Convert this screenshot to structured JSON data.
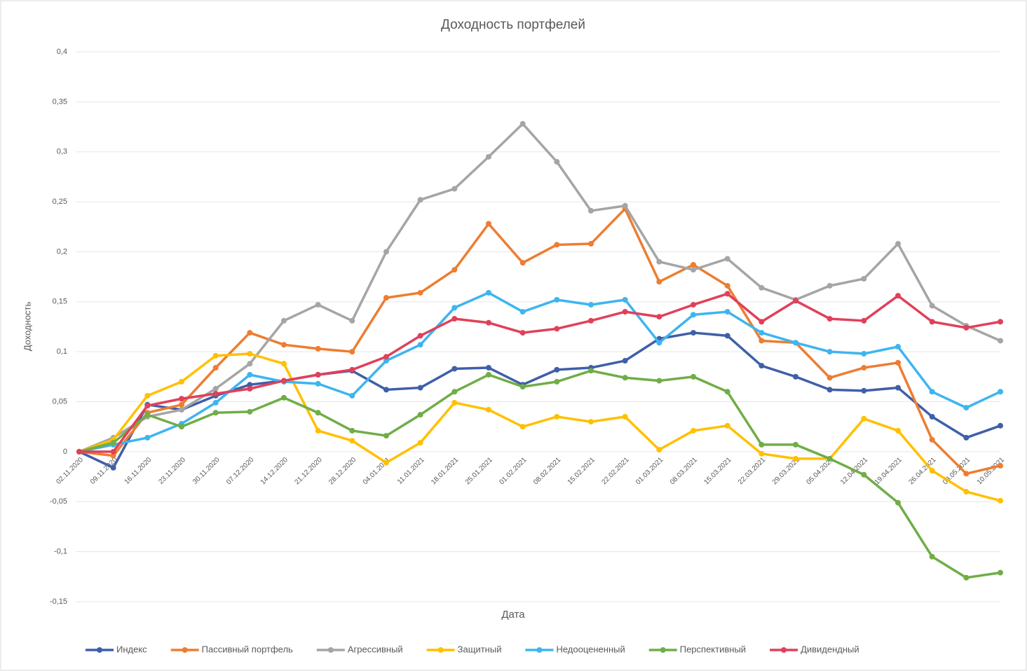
{
  "chart_data": {
    "type": "line",
    "title": "Доходность портфелей",
    "x_label": "Дата",
    "y_label": "Доходность",
    "categories": [
      "02.11.2020",
      "09.11.2020",
      "16.11.2020",
      "23.11.2020",
      "30.11.2020",
      "07.12.2020",
      "14.12.2020",
      "21.12.2020",
      "28.12.2020",
      "04.01.2021",
      "11.01.2021",
      "18.01.2021",
      "25.01.2021",
      "01.02.2021",
      "08.02.2021",
      "15.02.2021",
      "22.02.2021",
      "01.03.2021",
      "08.03.2021",
      "15.03.2021",
      "22.03.2021",
      "29.03.2021",
      "05.04.2021",
      "12.04.2021",
      "19.04.2021",
      "26.04.2021",
      "03.05.2021",
      "10.05.2021"
    ],
    "ylim": [
      -0.15,
      0.4
    ],
    "yticks": [
      {
        "value": -0.15,
        "label": "-0,15"
      },
      {
        "value": -0.1,
        "label": "-0,1"
      },
      {
        "value": -0.05,
        "label": "-0,05"
      },
      0,
      {
        "value": 0.05,
        "label": "0,05"
      },
      {
        "value": 0.1,
        "label": "0,1"
      },
      {
        "value": 0.15,
        "label": "0,15"
      },
      {
        "value": 0.2,
        "label": "0,2"
      },
      {
        "value": 0.25,
        "label": "0,25"
      },
      {
        "value": 0.3,
        "label": "0,3"
      },
      {
        "value": 0.35,
        "label": "0,35"
      },
      {
        "value": 0.4,
        "label": "0,4"
      }
    ],
    "grid": true,
    "legend": "bottom",
    "series": [
      {
        "name": "Индекс",
        "color": "#3f5fa8",
        "values": [
          0,
          -0.016,
          0.047,
          0.042,
          0.056,
          0.067,
          0.071,
          0.077,
          0.081,
          0.062,
          0.064,
          0.083,
          0.084,
          0.067,
          0.082,
          0.084,
          0.091,
          0.113,
          0.119,
          0.116,
          0.086,
          0.075,
          0.062,
          0.061,
          0.064,
          0.035,
          0.014,
          0.026
        ]
      },
      {
        "name": "Пассивный портфель",
        "color": "#ed7d31",
        "values": [
          0,
          -0.004,
          0.039,
          0.047,
          0.084,
          0.119,
          0.107,
          0.103,
          0.1,
          0.154,
          0.159,
          0.182,
          0.228,
          0.189,
          0.207,
          0.208,
          0.243,
          0.17,
          0.187,
          0.166,
          0.111,
          0.109,
          0.074,
          0.084,
          0.089,
          0.012,
          -0.022,
          -0.014
        ]
      },
      {
        "name": "Агрессивный",
        "color": "#a5a5a5",
        "values": [
          0,
          0.014,
          0.035,
          0.042,
          0.063,
          0.088,
          0.131,
          0.147,
          0.131,
          0.2,
          0.252,
          0.263,
          0.295,
          0.328,
          0.29,
          0.241,
          0.246,
          0.19,
          0.182,
          0.193,
          0.164,
          0.152,
          0.166,
          0.173,
          0.208,
          0.146,
          0.126,
          0.111
        ]
      },
      {
        "name": "Защитный",
        "color": "#ffc000",
        "values": [
          0,
          0.012,
          0.056,
          0.07,
          0.096,
          0.098,
          0.088,
          0.021,
          0.011,
          -0.011,
          0.009,
          0.049,
          0.042,
          0.025,
          0.035,
          0.03,
          0.035,
          0.002,
          0.021,
          0.026,
          -0.002,
          -0.007,
          -0.007,
          0.033,
          0.021,
          -0.019,
          -0.04,
          -0.049
        ]
      },
      {
        "name": "Недооцененный",
        "color": "#3db5ef",
        "values": [
          0,
          0.007,
          0.014,
          0.028,
          0.049,
          0.077,
          0.07,
          0.068,
          0.056,
          0.091,
          0.107,
          0.144,
          0.159,
          0.14,
          0.152,
          0.147,
          0.152,
          0.109,
          0.137,
          0.14,
          0.119,
          0.109,
          0.1,
          0.098,
          0.105,
          0.06,
          0.044,
          0.06
        ]
      },
      {
        "name": "Перспективный",
        "color": "#70ad47",
        "values": [
          0,
          0.009,
          0.037,
          0.025,
          0.039,
          0.04,
          0.054,
          0.039,
          0.021,
          0.016,
          0.037,
          0.06,
          0.077,
          0.065,
          0.07,
          0.081,
          0.074,
          0.071,
          0.075,
          0.06,
          0.007,
          0.007,
          -0.007,
          -0.023,
          -0.051,
          -0.105,
          -0.126,
          -0.121
        ]
      },
      {
        "name": "Дивидендный",
        "color": "#e0405a",
        "values": [
          0,
          0,
          0.046,
          0.053,
          0.058,
          0.063,
          0.071,
          0.077,
          0.082,
          0.095,
          0.116,
          0.133,
          0.129,
          0.119,
          0.123,
          0.131,
          0.14,
          0.135,
          0.147,
          0.158,
          0.13,
          0.151,
          0.133,
          0.131,
          0.156,
          0.13,
          0.124,
          0.13
        ]
      }
    ]
  }
}
